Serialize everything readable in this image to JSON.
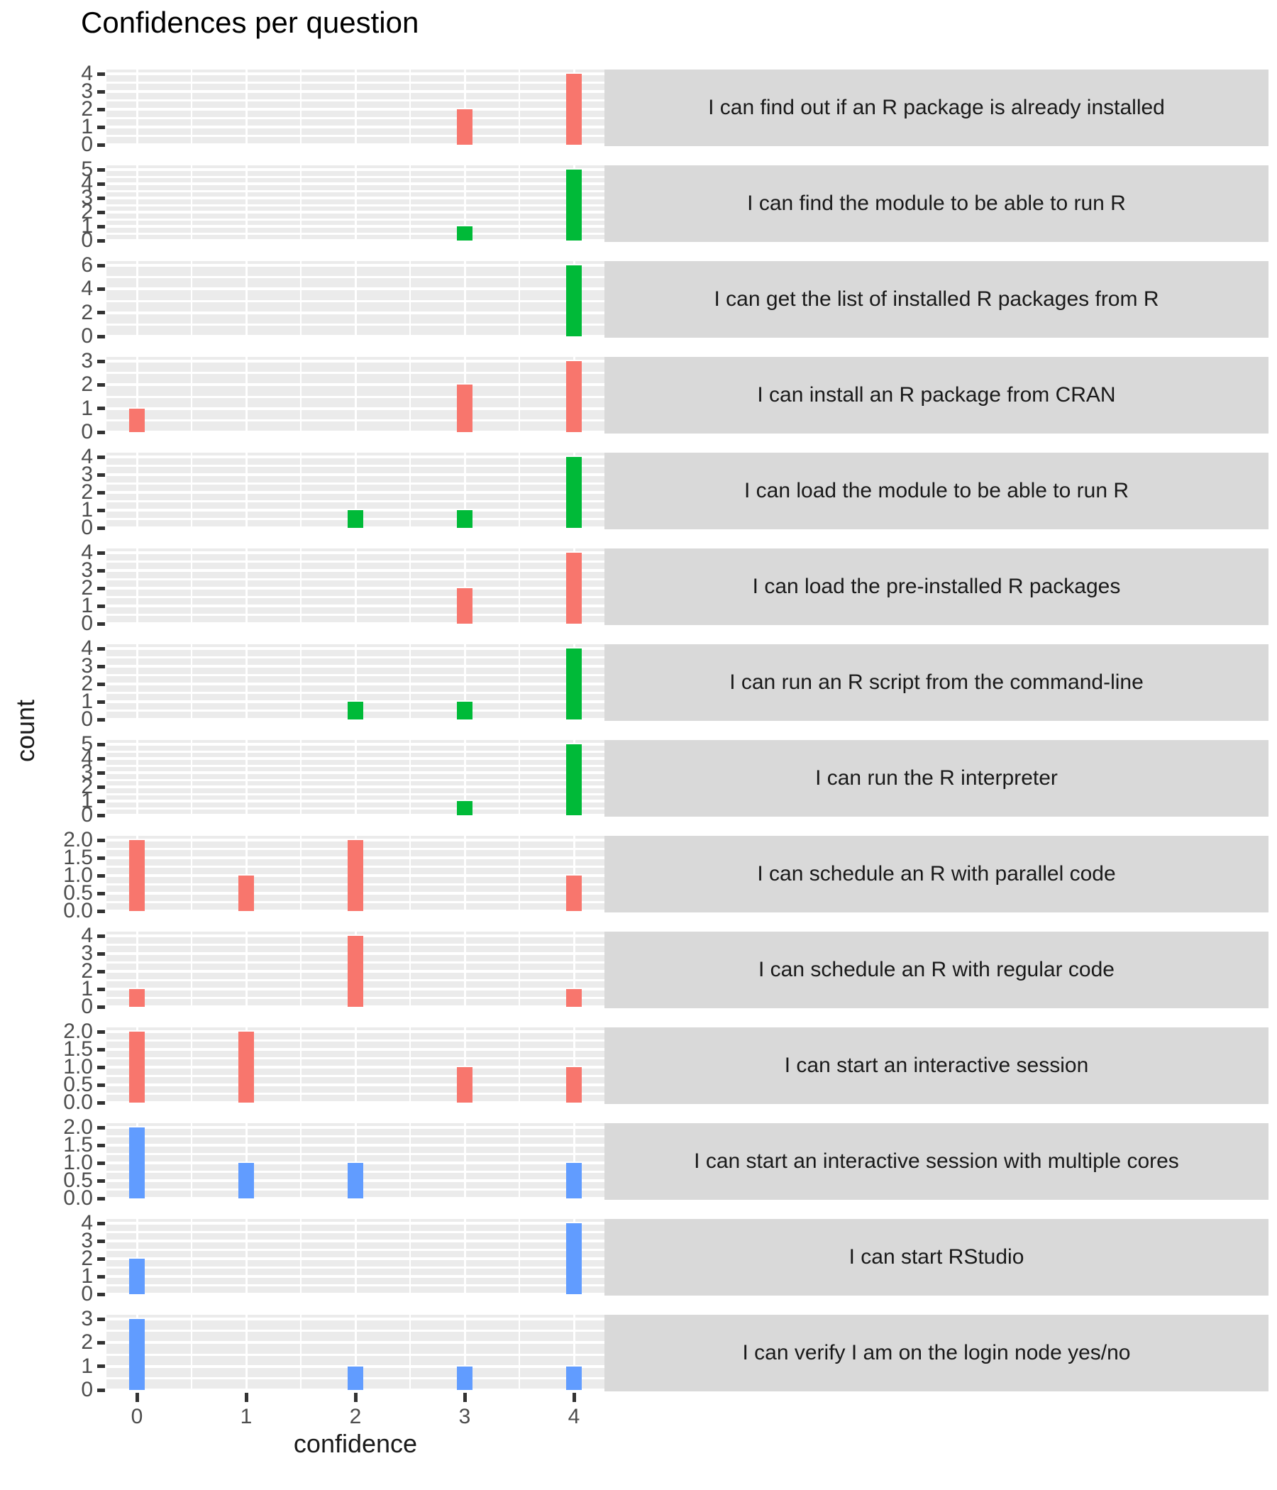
{
  "title": "Confidences per question",
  "axes": {
    "x_label": "confidence",
    "y_label": "count",
    "x_ticks": [
      "0",
      "1",
      "2",
      "3",
      "4"
    ]
  },
  "colors": {
    "red": "#F8766D",
    "green": "#00BA38",
    "blue": "#619CFF",
    "panel_bg": "#EBEBEB",
    "strip_bg": "#D9D9D9",
    "gridline": "#FFFFFF",
    "tick_mark": "#333333",
    "axis_text": "#4D4D4D",
    "strip_text": "#1a1a1a",
    "title_text": "#000000"
  },
  "chart_data": {
    "type": "bar",
    "title": "Confidences per question",
    "xlabel": "confidence",
    "ylabel": "count",
    "x_ticks": [
      0,
      1,
      2,
      3,
      4
    ],
    "grid": true,
    "legend": "none",
    "facets": [
      {
        "label": "I can find out if an R package is already installed",
        "color": "#F8766D",
        "y_max": 4,
        "y_ticks": [
          "0",
          "1",
          "2",
          "3",
          "4"
        ],
        "bars": [
          {
            "x": 3,
            "count": 2
          },
          {
            "x": 4,
            "count": 4
          }
        ]
      },
      {
        "label": "I can find the module to be able to run R",
        "color": "#00BA38",
        "y_max": 5,
        "y_ticks": [
          "0",
          "1",
          "2",
          "3",
          "4",
          "5"
        ],
        "bars": [
          {
            "x": 3,
            "count": 1
          },
          {
            "x": 4,
            "count": 5
          }
        ]
      },
      {
        "label": "I can get the list of installed R packages from R",
        "color": "#00BA38",
        "y_max": 6,
        "y_ticks": [
          "0",
          "2",
          "4",
          "6"
        ],
        "bars": [
          {
            "x": 4,
            "count": 6
          }
        ]
      },
      {
        "label": "I can install an R package from CRAN",
        "color": "#F8766D",
        "y_max": 3,
        "y_ticks": [
          "0",
          "1",
          "2",
          "3"
        ],
        "bars": [
          {
            "x": 0,
            "count": 1
          },
          {
            "x": 3,
            "count": 2
          },
          {
            "x": 4,
            "count": 3
          }
        ]
      },
      {
        "label": "I can load the module to be able to run R",
        "color": "#00BA38",
        "y_max": 4,
        "y_ticks": [
          "0",
          "1",
          "2",
          "3",
          "4"
        ],
        "bars": [
          {
            "x": 2,
            "count": 1
          },
          {
            "x": 3,
            "count": 1
          },
          {
            "x": 4,
            "count": 4
          }
        ]
      },
      {
        "label": "I can load the pre-installed R packages",
        "color": "#F8766D",
        "y_max": 4,
        "y_ticks": [
          "0",
          "1",
          "2",
          "3",
          "4"
        ],
        "bars": [
          {
            "x": 3,
            "count": 2
          },
          {
            "x": 4,
            "count": 4
          }
        ]
      },
      {
        "label": "I can run an R script from the command-line",
        "color": "#00BA38",
        "y_max": 4,
        "y_ticks": [
          "0",
          "1",
          "2",
          "3",
          "4"
        ],
        "bars": [
          {
            "x": 2,
            "count": 1
          },
          {
            "x": 3,
            "count": 1
          },
          {
            "x": 4,
            "count": 4
          }
        ]
      },
      {
        "label": "I can run the R interpreter",
        "color": "#00BA38",
        "y_max": 5,
        "y_ticks": [
          "0",
          "1",
          "2",
          "3",
          "4",
          "5"
        ],
        "bars": [
          {
            "x": 3,
            "count": 1
          },
          {
            "x": 4,
            "count": 5
          }
        ]
      },
      {
        "label": "I can schedule an R with parallel code",
        "color": "#F8766D",
        "y_max": 2,
        "y_ticks": [
          "0.0",
          "0.5",
          "1.0",
          "1.5",
          "2.0"
        ],
        "bars": [
          {
            "x": 0,
            "count": 2
          },
          {
            "x": 1,
            "count": 1
          },
          {
            "x": 2,
            "count": 2
          },
          {
            "x": 4,
            "count": 1
          }
        ]
      },
      {
        "label": "I can schedule an R with regular code",
        "color": "#F8766D",
        "y_max": 4,
        "y_ticks": [
          "0",
          "1",
          "2",
          "3",
          "4"
        ],
        "bars": [
          {
            "x": 0,
            "count": 1
          },
          {
            "x": 2,
            "count": 4
          },
          {
            "x": 4,
            "count": 1
          }
        ]
      },
      {
        "label": "I can start an interactive session",
        "color": "#F8766D",
        "y_max": 2,
        "y_ticks": [
          "0.0",
          "0.5",
          "1.0",
          "1.5",
          "2.0"
        ],
        "bars": [
          {
            "x": 0,
            "count": 2
          },
          {
            "x": 1,
            "count": 2
          },
          {
            "x": 3,
            "count": 1
          },
          {
            "x": 4,
            "count": 1
          }
        ]
      },
      {
        "label": "I can start an interactive session with multiple cores",
        "color": "#619CFF",
        "y_max": 2,
        "y_ticks": [
          "0.0",
          "0.5",
          "1.0",
          "1.5",
          "2.0"
        ],
        "bars": [
          {
            "x": 0,
            "count": 2
          },
          {
            "x": 1,
            "count": 1
          },
          {
            "x": 2,
            "count": 1
          },
          {
            "x": 4,
            "count": 1
          }
        ]
      },
      {
        "label": "I can start RStudio",
        "color": "#619CFF",
        "y_max": 4,
        "y_ticks": [
          "0",
          "1",
          "2",
          "3",
          "4"
        ],
        "bars": [
          {
            "x": 0,
            "count": 2
          },
          {
            "x": 4,
            "count": 4
          }
        ]
      },
      {
        "label": "I can verify I am on the login node yes/no",
        "color": "#619CFF",
        "y_max": 3,
        "y_ticks": [
          "0",
          "1",
          "2",
          "3"
        ],
        "bars": [
          {
            "x": 0,
            "count": 3
          },
          {
            "x": 2,
            "count": 1
          },
          {
            "x": 3,
            "count": 1
          },
          {
            "x": 4,
            "count": 1
          }
        ]
      }
    ]
  }
}
